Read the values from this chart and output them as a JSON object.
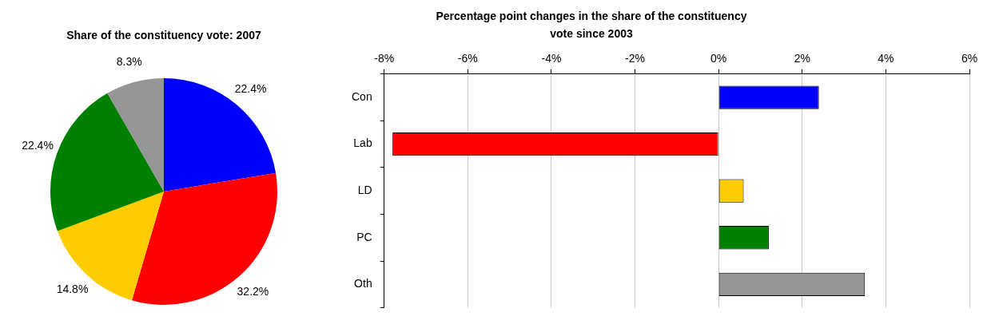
{
  "chart_data": [
    {
      "type": "pie",
      "title": "Share of the constituency vote: 2007",
      "categories": [
        null,
        null,
        null,
        null,
        null
      ],
      "values": [
        22.4,
        32.2,
        14.8,
        22.4,
        8.3
      ],
      "colors": [
        "#0000ff",
        "#ff0000",
        "#ffcc00",
        "#008000",
        "#969696"
      ],
      "value_labels": [
        "22.4%",
        "32.2%",
        "14.8%",
        "22.4%",
        "8.3%"
      ]
    },
    {
      "type": "bar",
      "orientation": "horizontal",
      "title": "Percentage point changes in the share of the constituency vote since 2003",
      "categories": [
        "Con",
        "Lab",
        "LD",
        "PC",
        "Oth"
      ],
      "values": [
        2.4,
        -7.8,
        0.6,
        1.2,
        3.5
      ],
      "colors": [
        "#0000ff",
        "#ff0000",
        "#ffcc00",
        "#008000",
        "#969696"
      ],
      "xlim": [
        -8,
        6
      ],
      "xticks": [
        {
          "value": -8,
          "label": "-8%"
        },
        {
          "value": -6,
          "label": "-6%"
        },
        {
          "value": -4,
          "label": "-4%"
        },
        {
          "value": -2,
          "label": "-2%"
        },
        {
          "value": 0,
          "label": "0%"
        },
        {
          "value": 2,
          "label": "2%"
        },
        {
          "value": 4,
          "label": "4%"
        },
        {
          "value": 6,
          "label": "6%"
        }
      ],
      "grid": "x"
    }
  ]
}
